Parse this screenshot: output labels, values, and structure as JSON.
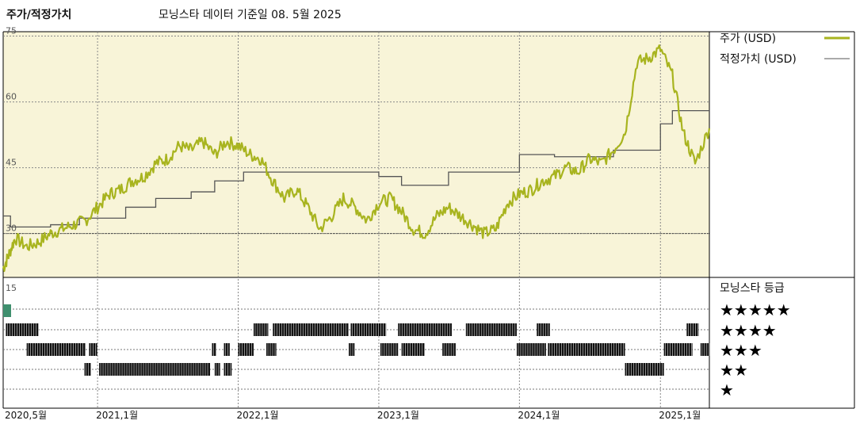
{
  "header": {
    "title": "주가/적정가치",
    "subtitle": "모닝스타 데이터 기준일 08. 5월 2025"
  },
  "legend": {
    "price_label": "주가 (USD)",
    "fair_label": "적정가치 (USD)",
    "rating_title": "모닝스타 등급"
  },
  "colors": {
    "price": "#a8b41f",
    "fair": "#555555",
    "panel_bg": "#f8f4d8",
    "rating_marker": "#3f8f6e",
    "bars": "#111111"
  },
  "chart_data": [
    {
      "type": "line",
      "ylim": [
        20,
        76
      ],
      "yticks": [
        75,
        60,
        45,
        30
      ],
      "grid": true,
      "x_range": [
        "2020-05-01",
        "2025-05-08"
      ],
      "xticks": [
        {
          "date": "2020-05-01",
          "label": "2020,5월"
        },
        {
          "date": "2021-01-01",
          "label": "2021,1월"
        },
        {
          "date": "2022-01-01",
          "label": "2022,1월"
        },
        {
          "date": "2023-01-01",
          "label": "2023,1월"
        },
        {
          "date": "2024-01-01",
          "label": "2024,1월"
        },
        {
          "date": "2025-01-01",
          "label": "2025,1월"
        }
      ],
      "series": [
        {
          "name": "주가 (USD)",
          "points": [
            [
              "2020-05-01",
              22
            ],
            [
              "2020-05-15",
              25
            ],
            [
              "2020-06-01",
              29
            ],
            [
              "2020-07-01",
              27
            ],
            [
              "2020-08-01",
              28
            ],
            [
              "2020-09-01",
              30
            ],
            [
              "2020-10-01",
              31
            ],
            [
              "2020-11-01",
              32
            ],
            [
              "2020-12-01",
              33
            ],
            [
              "2021-01-01",
              36
            ],
            [
              "2021-02-01",
              39
            ],
            [
              "2021-03-01",
              40
            ],
            [
              "2021-04-01",
              42
            ],
            [
              "2021-05-01",
              43
            ],
            [
              "2021-06-01",
              46
            ],
            [
              "2021-07-01",
              47
            ],
            [
              "2021-08-01",
              50
            ],
            [
              "2021-09-01",
              49
            ],
            [
              "2021-10-01",
              51
            ],
            [
              "2021-11-01",
              48
            ],
            [
              "2021-12-01",
              51
            ],
            [
              "2022-01-01",
              50
            ],
            [
              "2022-02-01",
              48
            ],
            [
              "2022-03-01",
              47
            ],
            [
              "2022-04-01",
              42
            ],
            [
              "2022-05-01",
              38
            ],
            [
              "2022-06-01",
              40
            ],
            [
              "2022-07-01",
              36
            ],
            [
              "2022-08-01",
              31
            ],
            [
              "2022-09-01",
              34
            ],
            [
              "2022-10-01",
              38
            ],
            [
              "2022-11-01",
              36
            ],
            [
              "2022-12-01",
              33
            ],
            [
              "2023-01-01",
              37
            ],
            [
              "2023-02-01",
              38
            ],
            [
              "2023-03-01",
              35
            ],
            [
              "2023-04-01",
              31
            ],
            [
              "2023-05-01",
              30
            ],
            [
              "2023-06-01",
              34
            ],
            [
              "2023-07-01",
              36
            ],
            [
              "2023-08-01",
              34
            ],
            [
              "2023-09-01",
              32
            ],
            [
              "2023-10-01",
              30
            ],
            [
              "2023-11-01",
              31
            ],
            [
              "2023-12-01",
              37
            ],
            [
              "2024-01-01",
              39
            ],
            [
              "2024-02-01",
              40
            ],
            [
              "2024-03-01",
              42
            ],
            [
              "2024-04-01",
              43
            ],
            [
              "2024-05-01",
              45
            ],
            [
              "2024-06-01",
              44
            ],
            [
              "2024-07-01",
              47
            ],
            [
              "2024-08-01",
              46
            ],
            [
              "2024-09-01",
              49
            ],
            [
              "2024-10-01",
              53
            ],
            [
              "2024-11-01",
              69
            ],
            [
              "2024-12-01",
              70
            ],
            [
              "2025-01-01",
              72
            ],
            [
              "2025-02-01",
              66
            ],
            [
              "2025-03-01",
              53
            ],
            [
              "2025-04-01",
              46
            ],
            [
              "2025-05-08",
              54
            ]
          ]
        },
        {
          "name": "적정가치 (USD)",
          "steps": [
            [
              "2020-05-01",
              34
            ],
            [
              "2020-05-20",
              31.5
            ],
            [
              "2020-07-01",
              31.5
            ],
            [
              "2020-09-01",
              32
            ],
            [
              "2020-11-15",
              33.5
            ],
            [
              "2021-03-15",
              36
            ],
            [
              "2021-06-01",
              38
            ],
            [
              "2021-09-01",
              39.5
            ],
            [
              "2021-11-01",
              42
            ],
            [
              "2022-01-15",
              44
            ],
            [
              "2023-01-01",
              43
            ],
            [
              "2023-03-01",
              41
            ],
            [
              "2023-07-01",
              44
            ],
            [
              "2024-01-01",
              48
            ],
            [
              "2024-04-01",
              47.5
            ],
            [
              "2024-09-01",
              49
            ],
            [
              "2025-01-01",
              55
            ],
            [
              "2025-02-01",
              58
            ],
            [
              "2025-05-08",
              58
            ]
          ]
        }
      ]
    },
    {
      "type": "bar",
      "levels": [
        "★★★★★",
        "★★★★",
        "★★★",
        "★★",
        "★"
      ],
      "ylim_label": "15",
      "segments": [
        {
          "stars": 4,
          "start": "2020-05-08",
          "end": "2020-08-01"
        },
        {
          "stars": 3,
          "start": "2020-07-01",
          "end": "2020-12-01"
        },
        {
          "stars": 3,
          "start": "2020-12-10",
          "end": "2020-12-31"
        },
        {
          "stars": 2,
          "start": "2020-11-28",
          "end": "2020-12-15"
        },
        {
          "stars": 2,
          "start": "2021-01-05",
          "end": "2021-10-20"
        },
        {
          "stars": 2,
          "start": "2021-11-01",
          "end": "2021-11-15"
        },
        {
          "stars": 2,
          "start": "2021-11-25",
          "end": "2021-12-15"
        },
        {
          "stars": 3,
          "start": "2021-10-25",
          "end": "2021-11-05"
        },
        {
          "stars": 3,
          "start": "2021-11-25",
          "end": "2021-12-10"
        },
        {
          "stars": 3,
          "start": "2022-01-01",
          "end": "2022-02-10"
        },
        {
          "stars": 3,
          "start": "2022-03-15",
          "end": "2022-04-10"
        },
        {
          "stars": 4,
          "start": "2022-02-10",
          "end": "2022-03-20"
        },
        {
          "stars": 4,
          "start": "2022-04-01",
          "end": "2022-10-15"
        },
        {
          "stars": 4,
          "start": "2022-10-20",
          "end": "2023-01-20"
        },
        {
          "stars": 3,
          "start": "2022-10-15",
          "end": "2022-10-30"
        },
        {
          "stars": 3,
          "start": "2023-01-05",
          "end": "2023-02-20"
        },
        {
          "stars": 4,
          "start": "2023-02-20",
          "end": "2023-07-10"
        },
        {
          "stars": 3,
          "start": "2023-03-01",
          "end": "2023-04-30"
        },
        {
          "stars": 3,
          "start": "2023-06-15",
          "end": "2023-07-20"
        },
        {
          "stars": 4,
          "start": "2023-08-15",
          "end": "2023-12-25"
        },
        {
          "stars": 3,
          "start": "2023-12-25",
          "end": "2024-03-10"
        },
        {
          "stars": 4,
          "start": "2024-02-15",
          "end": "2024-03-20"
        },
        {
          "stars": 3,
          "start": "2024-03-15",
          "end": "2024-10-01"
        },
        {
          "stars": 2,
          "start": "2024-10-01",
          "end": "2025-01-10"
        },
        {
          "stars": 3,
          "start": "2025-01-10",
          "end": "2025-03-25"
        },
        {
          "stars": 4,
          "start": "2025-03-10",
          "end": "2025-04-10"
        },
        {
          "stars": 3,
          "start": "2025-04-15",
          "end": "2025-05-08"
        }
      ],
      "current_marker": {
        "date": "2020-05-01",
        "value_label": "15"
      }
    }
  ]
}
